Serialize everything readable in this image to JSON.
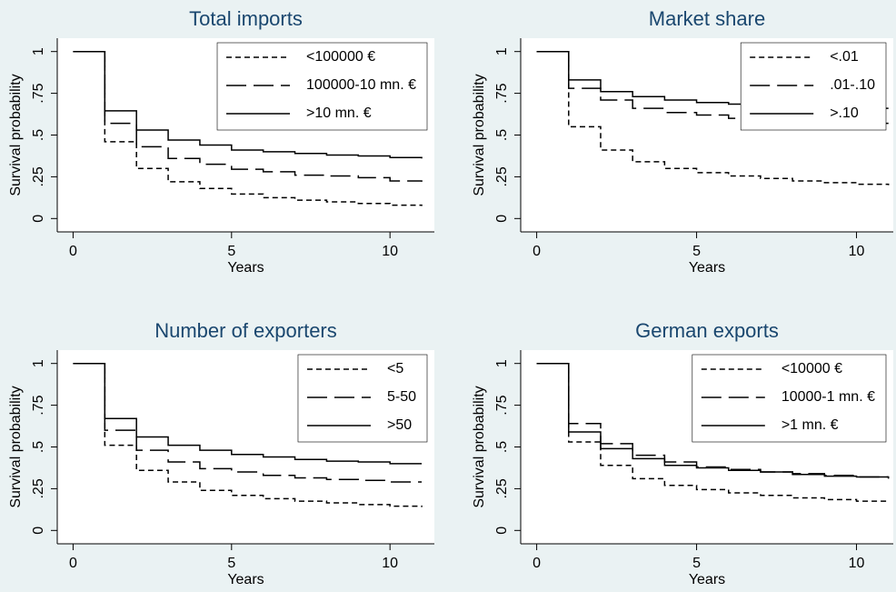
{
  "chart_data": [
    {
      "type": "step",
      "title": "Total imports",
      "x_label": "Years",
      "y_label": "Survival probability",
      "x": [
        0,
        1,
        2,
        3,
        4,
        5,
        6,
        7,
        8,
        9,
        10,
        11
      ],
      "xlim": [
        -0.5,
        11.4
      ],
      "ylim": [
        -0.08,
        1.08
      ],
      "xticks": [
        0,
        5,
        10
      ],
      "yticks": [
        0,
        {
          "value": 0.25,
          "label": ".25"
        },
        {
          "value": 0.5,
          "label": ".5"
        },
        {
          "value": 0.75,
          "label": ".75"
        },
        1
      ],
      "legend": "upper right",
      "series": [
        {
          "name": "<100000 €",
          "color": "#000000",
          "dash": "short",
          "values": [
            1,
            0.46,
            0.3,
            0.22,
            0.18,
            0.147,
            0.125,
            0.11,
            0.1,
            0.09,
            0.08,
            0.075
          ]
        },
        {
          "name": "100000-10 mn. €",
          "color": "#000000",
          "dash": "long",
          "values": [
            1,
            0.57,
            0.43,
            0.36,
            0.325,
            0.295,
            0.28,
            0.26,
            0.255,
            0.245,
            0.225,
            0.22
          ]
        },
        {
          "name": ">10 mn. €",
          "color": "#000000",
          "dash": "solid",
          "values": [
            1,
            0.645,
            0.53,
            0.47,
            0.44,
            0.41,
            0.4,
            0.39,
            0.38,
            0.375,
            0.365,
            0.36
          ]
        }
      ]
    },
    {
      "type": "step",
      "title": "Market share",
      "x_label": "Years",
      "y_label": "Survival probability",
      "x": [
        0,
        1,
        2,
        3,
        4,
        5,
        6,
        7,
        8,
        9,
        10,
        11
      ],
      "xlim": [
        -0.5,
        11.15
      ],
      "ylim": [
        -0.08,
        1.08
      ],
      "xticks": [
        0,
        5,
        10
      ],
      "yticks": [
        0,
        {
          "value": 0.25,
          "label": ".25"
        },
        {
          "value": 0.5,
          "label": ".5"
        },
        {
          "value": 0.75,
          "label": ".75"
        },
        1
      ],
      "legend": "upper right",
      "series": [
        {
          "name": "<.01",
          "color": "#000000",
          "dash": "short",
          "values": [
            1,
            0.55,
            0.41,
            0.34,
            0.3,
            0.275,
            0.255,
            0.24,
            0.225,
            0.215,
            0.205,
            0.2
          ]
        },
        {
          "name": ".01-.10",
          "color": "#000000",
          "dash": "long",
          "values": [
            1,
            0.78,
            0.71,
            0.66,
            0.635,
            0.62,
            0.6,
            0.59,
            0.58,
            0.575,
            0.57,
            0.57
          ]
        },
        {
          "name": ">.10",
          "color": "#000000",
          "dash": "solid",
          "values": [
            1,
            0.83,
            0.76,
            0.73,
            0.71,
            0.695,
            0.685,
            0.675,
            0.67,
            0.665,
            0.66,
            0.66
          ]
        }
      ]
    },
    {
      "type": "step",
      "title": "Number of exporters",
      "x_label": "Years",
      "y_label": "Survival probability",
      "x": [
        0,
        1,
        2,
        3,
        4,
        5,
        6,
        7,
        8,
        9,
        10,
        11
      ],
      "xlim": [
        -0.5,
        11.4
      ],
      "ylim": [
        -0.08,
        1.08
      ],
      "xticks": [
        0,
        5,
        10
      ],
      "yticks": [
        0,
        {
          "value": 0.25,
          "label": ".25"
        },
        {
          "value": 0.5,
          "label": ".5"
        },
        {
          "value": 0.75,
          "label": ".75"
        },
        1
      ],
      "legend": "upper right",
      "series": [
        {
          "name": "<5",
          "color": "#000000",
          "dash": "short",
          "values": [
            1,
            0.51,
            0.36,
            0.29,
            0.24,
            0.21,
            0.19,
            0.175,
            0.165,
            0.155,
            0.145,
            0.14
          ]
        },
        {
          "name": "5-50",
          "color": "#000000",
          "dash": "long",
          "values": [
            1,
            0.6,
            0.48,
            0.41,
            0.37,
            0.35,
            0.33,
            0.315,
            0.305,
            0.3,
            0.29,
            0.29
          ]
        },
        {
          "name": ">50",
          "color": "#000000",
          "dash": "solid",
          "values": [
            1,
            0.67,
            0.56,
            0.51,
            0.48,
            0.455,
            0.44,
            0.425,
            0.415,
            0.41,
            0.4,
            0.4
          ]
        }
      ]
    },
    {
      "type": "step",
      "title": "German exports",
      "x_label": "Years",
      "y_label": "Survival probability",
      "x": [
        0,
        1,
        2,
        3,
        4,
        5,
        6,
        7,
        8,
        9,
        10,
        11
      ],
      "xlim": [
        -0.5,
        11.15
      ],
      "ylim": [
        -0.08,
        1.08
      ],
      "xticks": [
        0,
        5,
        10
      ],
      "yticks": [
        0,
        {
          "value": 0.25,
          "label": ".25"
        },
        {
          "value": 0.5,
          "label": ".5"
        },
        {
          "value": 0.75,
          "label": ".75"
        },
        1
      ],
      "legend": "upper right",
      "series": [
        {
          "name": "<10000 €",
          "color": "#000000",
          "dash": "short",
          "values": [
            1,
            0.53,
            0.39,
            0.31,
            0.27,
            0.245,
            0.225,
            0.21,
            0.195,
            0.185,
            0.175,
            0.175
          ]
        },
        {
          "name": "10000-1 mn. €",
          "color": "#000000",
          "dash": "long",
          "values": [
            1,
            0.64,
            0.52,
            0.45,
            0.41,
            0.38,
            0.365,
            0.35,
            0.34,
            0.33,
            0.32,
            0.31
          ]
        },
        {
          "name": ">1 mn. €",
          "color": "#000000",
          "dash": "solid",
          "values": [
            1,
            0.59,
            0.49,
            0.43,
            0.39,
            0.375,
            0.36,
            0.35,
            0.335,
            0.325,
            0.32,
            0.32
          ]
        }
      ]
    }
  ]
}
